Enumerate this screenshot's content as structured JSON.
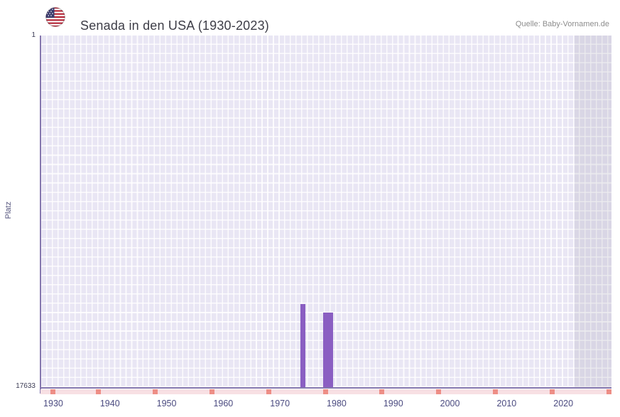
{
  "header": {
    "title": "Senada in den USA (1930-2023)",
    "source": "Quelle: Baby-Vornamen.de"
  },
  "chart": {
    "y_axis_title": "Platz",
    "y_top_label": "1",
    "y_bottom_label": "17633"
  },
  "chart_data": {
    "type": "bar",
    "title": "Senada in den USA (1930-2023)",
    "xlabel": "",
    "ylabel": "Platz",
    "x_ticks": [
      1930,
      1940,
      1950,
      1960,
      1970,
      1980,
      1990,
      2000,
      2010,
      2020
    ],
    "xlim": [
      1927.75,
      2028.5
    ],
    "ylim": [
      1,
      17633
    ],
    "y_ticks": [
      1,
      17633
    ],
    "y_axis_inverted": true,
    "grid": true,
    "points": [
      {
        "year": 1974,
        "rank": 13460
      },
      {
        "year": 1978,
        "rank": 13890
      },
      {
        "year": 1979,
        "rank": 13890
      }
    ],
    "no_rank_marker_years": [
      1930,
      1938,
      1948,
      1958,
      1968,
      1978,
      1988,
      1998,
      2008,
      2018,
      2028
    ],
    "future_region_start_year": 2022,
    "colors": {
      "bar": "#8a5ec2",
      "axis": "#8577ae",
      "tick_label": "#4b4b80",
      "plot_background": "#e9e6f4",
      "grid_line": "#ffffff",
      "no_rank_band": "#f8e0e4",
      "no_rank_marker": "#ee8e86",
      "future_shade": "rgba(130,130,145,0.15)"
    }
  }
}
